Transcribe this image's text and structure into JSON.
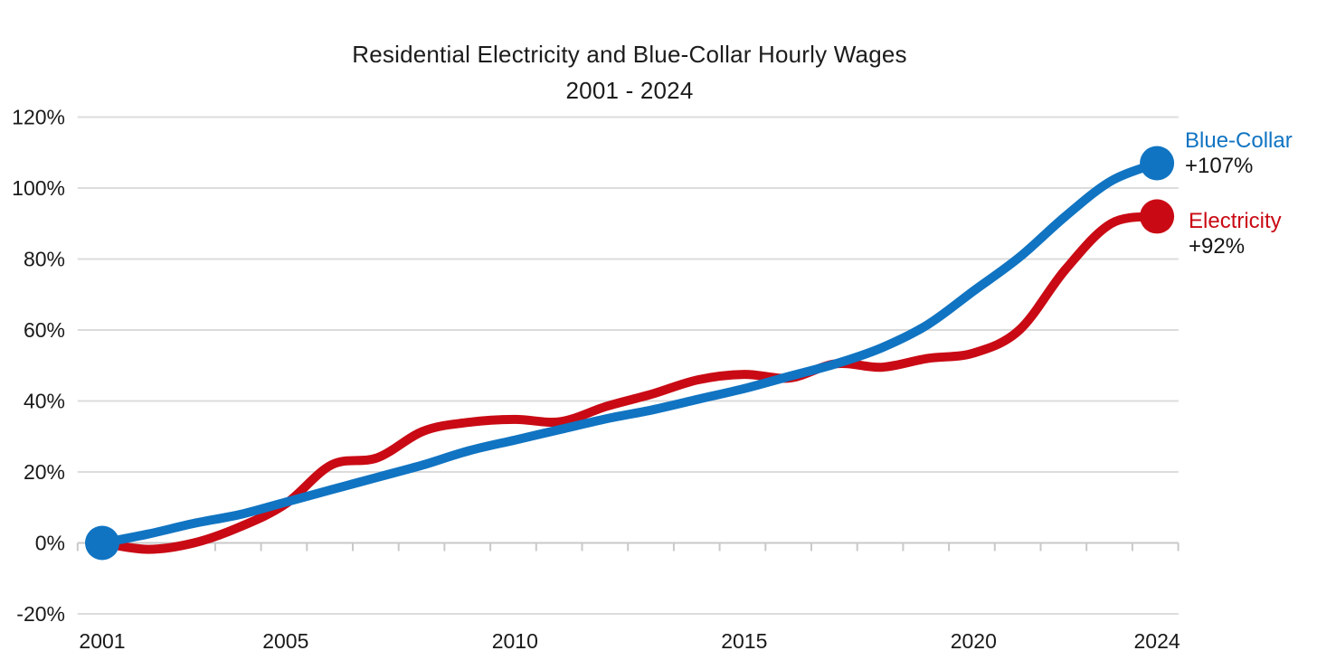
{
  "chart_data": {
    "type": "line",
    "title": "Residential Electricity and Blue-Collar Hourly Wages",
    "subtitle": "2001 - 2024",
    "x_years": [
      2001,
      2002,
      2003,
      2004,
      2005,
      2006,
      2007,
      2008,
      2009,
      2010,
      2011,
      2012,
      2013,
      2014,
      2015,
      2016,
      2017,
      2018,
      2019,
      2020,
      2021,
      2022,
      2023,
      2024
    ],
    "series": [
      {
        "name": "Blue-Collar",
        "color": "#1074c2",
        "end_label": "Blue-Collar",
        "end_value_label": "+107%",
        "start_marker": true,
        "values": [
          0,
          2.5,
          5.5,
          8,
          11.5,
          15,
          18.5,
          22,
          26,
          29,
          32,
          35,
          37.5,
          40.5,
          43.5,
          47,
          50.5,
          55,
          61.5,
          71,
          80.5,
          92,
          102,
          107
        ]
      },
      {
        "name": "Electricity",
        "color": "#c90a14",
        "end_label": "Electricity",
        "end_value_label": "+92%",
        "start_marker": false,
        "values": [
          0,
          -1.8,
          0,
          4.5,
          11,
          22,
          24,
          31.5,
          34,
          34.8,
          34.2,
          38.5,
          42,
          46,
          47.5,
          46.5,
          50.5,
          49.5,
          52,
          53.5,
          60,
          77,
          90,
          92
        ]
      }
    ],
    "y_axis": {
      "ticks": [
        {
          "label": "120%",
          "value": 120
        },
        {
          "label": "100%",
          "value": 100
        },
        {
          "label": "80%",
          "value": 80
        },
        {
          "label": "60%",
          "value": 60
        },
        {
          "label": "40%",
          "value": 40
        },
        {
          "label": "20%",
          "value": 20
        },
        {
          "label": "0%",
          "value": 0
        },
        {
          "label": "-20%",
          "value": -20
        }
      ]
    },
    "x_axis": {
      "labeled_ticks": [
        {
          "label": "2001",
          "year": 2001
        },
        {
          "label": "2005",
          "year": 2005
        },
        {
          "label": "2010",
          "year": 2010
        },
        {
          "label": "2015",
          "year": 2015
        },
        {
          "label": "2020",
          "year": 2020
        },
        {
          "label": "2024",
          "year": 2024
        }
      ]
    },
    "ylim": [
      -20,
      120
    ],
    "grid": "horizontal",
    "legend_position": "end-of-line-labels"
  },
  "colors": {
    "grid": "#dcdcdc",
    "axis": "#c9c9c9",
    "text": "#1a1a1a",
    "title_text": "#1c1c1c"
  }
}
